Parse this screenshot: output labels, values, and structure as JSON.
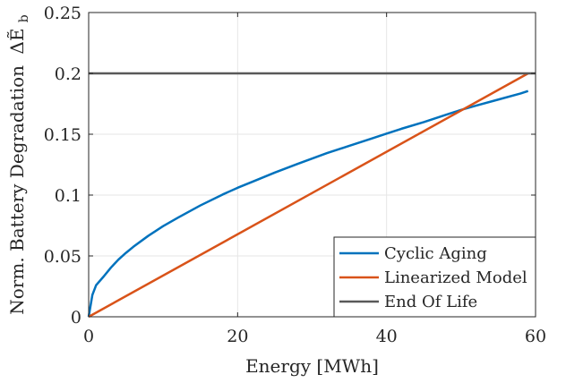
{
  "chart_data": {
    "type": "line",
    "xlabel": "Energy [MWh]",
    "ylabel_text": "Norm. Battery Degradation",
    "ylabel_symbol": "ΔẼ",
    "ylabel_subscript": "b",
    "xlim": [
      0,
      60
    ],
    "ylim": [
      0,
      0.25
    ],
    "x_ticks": [
      0,
      20,
      40,
      60
    ],
    "x_tick_labels": [
      "0",
      "20",
      "40",
      "60"
    ],
    "y_ticks": [
      0,
      0.05,
      0.1,
      0.15,
      0.2,
      0.25
    ],
    "y_tick_labels": [
      "0",
      "0.05",
      "0.1",
      "0.15",
      "0.2",
      "0.25"
    ],
    "grid": true,
    "legend_position": "bottom-right",
    "series": [
      {
        "name": "Cyclic Aging",
        "color": "#0072BD",
        "x": [
          0,
          0.5,
          1,
          2,
          3,
          4,
          5,
          6,
          8,
          10,
          12,
          15,
          18,
          20,
          22,
          25,
          28,
          30,
          32,
          35,
          38,
          40,
          42,
          45,
          48,
          50,
          52,
          55,
          58,
          59
        ],
        "y": [
          0,
          0.018,
          0.026,
          0.033,
          0.0405,
          0.047,
          0.0525,
          0.0575,
          0.0665,
          0.0745,
          0.0815,
          0.0915,
          0.1005,
          0.106,
          0.111,
          0.1185,
          0.1255,
          0.13,
          0.1345,
          0.1405,
          0.1465,
          0.1505,
          0.1545,
          0.16,
          0.166,
          0.17,
          0.1735,
          0.1785,
          0.1835,
          0.1855
        ]
      },
      {
        "name": "Linearized Model",
        "color": "#D95319",
        "x": [
          0,
          59
        ],
        "y": [
          0,
          0.2
        ]
      },
      {
        "name": "End Of Life",
        "color": "#595959",
        "x": [
          0,
          60
        ],
        "y": [
          0.2,
          0.2
        ]
      }
    ]
  }
}
